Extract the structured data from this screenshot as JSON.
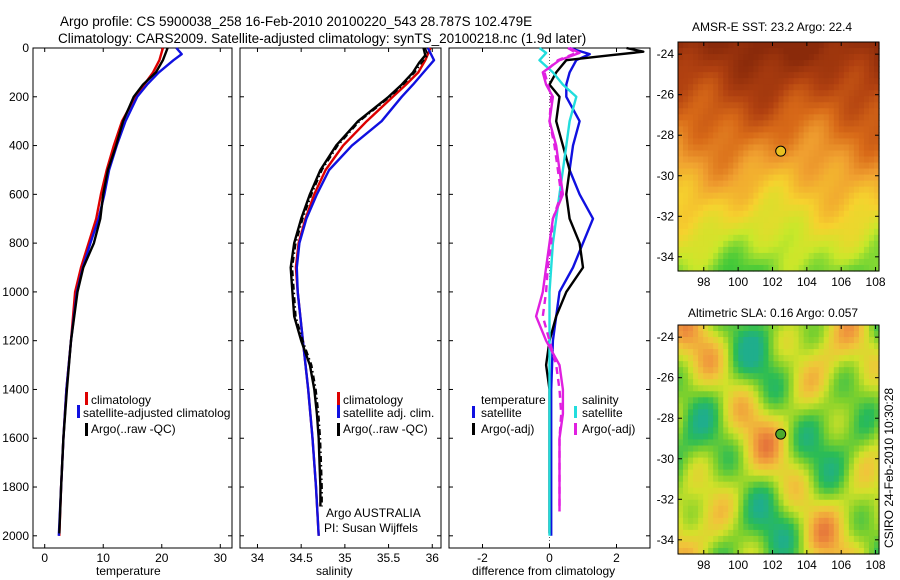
{
  "title": {
    "line1": "Argo profile: CS 5900038_258 16-Feb-2010 20100220_543 28.787S 102.479E",
    "line2": "Climatology: CARS2009. Satellite-adjusted climatology: synTS_20100218.nc (1.9d later)"
  },
  "footer": {
    "credit": "CSIRO 24-Feb-2010 10:30:28",
    "argo": "Argo AUSTRALIA",
    "pi": "PI: Susan Wijffels"
  },
  "colors": {
    "climatology": "#dd0000",
    "satellite": "#1010e0",
    "argo": "#000000",
    "satellite_salinity": "#22dddd",
    "argo_salinity": "#e020e0"
  },
  "chart_data": [
    {
      "type": "line",
      "panel": "temperature",
      "xlabel": "temperature",
      "ylabel": "",
      "xlim": [
        -2,
        32
      ],
      "ylim": [
        2050,
        0
      ],
      "x_ticks": [
        0,
        10,
        20,
        30
      ],
      "y_ticks": [
        0,
        200,
        400,
        600,
        800,
        1000,
        1200,
        1400,
        1600,
        1800,
        2000
      ],
      "legend_labels": [
        "climatology",
        "satellite-adjusted climatolog",
        "Argo(..raw -QC)"
      ],
      "series": [
        {
          "name": "climatology",
          "style": "solid",
          "depth": [
            0,
            50,
            100,
            150,
            200,
            300,
            400,
            500,
            600,
            700,
            800,
            900,
            1000,
            1200,
            1400,
            1600,
            1800,
            2000
          ],
          "values": [
            20.2,
            19.6,
            18.5,
            17.0,
            15.5,
            13.2,
            11.8,
            10.6,
            9.6,
            8.8,
            7.5,
            6.2,
            5.2,
            4.5,
            3.7,
            3.2,
            2.8,
            2.5
          ]
        },
        {
          "name": "satellite-adjusted climatolog",
          "style": "solid",
          "depth": [
            0,
            25,
            50,
            100,
            150,
            200,
            300,
            400,
            500,
            600,
            700,
            800,
            900,
            1000,
            1200,
            1400,
            1600,
            1800,
            2000
          ],
          "values": [
            22.5,
            23.4,
            22.0,
            19.5,
            17.5,
            15.8,
            13.8,
            12.3,
            11.0,
            10.2,
            9.2,
            7.8,
            6.5,
            5.5,
            4.5,
            3.7,
            3.2,
            2.8,
            2.4
          ]
        },
        {
          "name": "Argo(..raw -QC)",
          "style": "solid",
          "depth": [
            0,
            50,
            100,
            150,
            200,
            300,
            400,
            500,
            600,
            700,
            800,
            900,
            1000,
            1200,
            1400,
            1600,
            1800,
            1990
          ],
          "values": [
            21.0,
            20.2,
            19.0,
            16.8,
            15.2,
            13.4,
            12.2,
            10.8,
            10.0,
            9.5,
            8.4,
            6.6,
            5.6,
            4.5,
            3.8,
            3.2,
            2.8,
            2.5
          ]
        }
      ]
    },
    {
      "type": "line",
      "panel": "salinity",
      "xlabel": "salinity",
      "ylabel": "",
      "xlim": [
        33.8,
        36.1
      ],
      "ylim": [
        2050,
        0
      ],
      "x_ticks": [
        34,
        34.5,
        35,
        35.5,
        36
      ],
      "y_ticks": [
        0,
        200,
        400,
        600,
        800,
        1000,
        1200,
        1400,
        1600,
        1800,
        2000
      ],
      "legend_labels": [
        "climatology",
        "satellite adj. clim.",
        "Argo(..raw -QC)"
      ],
      "series": [
        {
          "name": "climatology",
          "style": "solid",
          "depth": [
            0,
            50,
            100,
            150,
            200,
            300,
            400,
            500,
            600,
            700,
            800,
            900,
            1000,
            1200,
            1400,
            1600,
            1800,
            2000
          ],
          "values": [
            35.98,
            35.92,
            35.84,
            35.7,
            35.55,
            35.25,
            34.98,
            34.78,
            34.65,
            34.55,
            34.47,
            34.44,
            34.46,
            34.52,
            34.58,
            34.63,
            34.67,
            34.7
          ]
        },
        {
          "name": "satellite adj. clim.",
          "style": "solid",
          "depth": [
            0,
            50,
            100,
            150,
            200,
            300,
            400,
            500,
            600,
            700,
            800,
            900,
            1000,
            1200,
            1400,
            1600,
            1800,
            2000
          ],
          "values": [
            35.95,
            36.02,
            35.9,
            35.78,
            35.65,
            35.42,
            35.08,
            34.82,
            34.68,
            34.56,
            34.48,
            34.45,
            34.46,
            34.52,
            34.58,
            34.63,
            34.67,
            34.7
          ]
        },
        {
          "name": "Argo(..raw -QC)",
          "style": "solid",
          "depth": [
            0,
            30,
            60,
            100,
            150,
            200,
            300,
            400,
            500,
            600,
            700,
            800,
            900,
            1000,
            1100,
            1200,
            1300,
            1400,
            1500,
            1600,
            1700,
            1800,
            1880
          ],
          "values": [
            35.9,
            35.92,
            35.85,
            35.78,
            35.65,
            35.5,
            35.15,
            34.9,
            34.72,
            34.6,
            34.5,
            34.42,
            34.38,
            34.4,
            34.42,
            34.5,
            34.6,
            34.65,
            34.68,
            34.7,
            34.71,
            34.72,
            34.72
          ]
        },
        {
          "name": "Argo(..raw -QC)",
          "style": "dashdot",
          "depth": [
            0,
            30,
            60,
            100,
            150,
            200,
            300,
            400,
            500,
            600,
            700,
            800,
            900,
            1000,
            1100,
            1200,
            1300,
            1400,
            1500,
            1600,
            1700,
            1800,
            1880
          ],
          "values": [
            35.92,
            35.95,
            35.88,
            35.8,
            35.67,
            35.52,
            35.17,
            34.92,
            34.74,
            34.62,
            34.52,
            34.44,
            34.4,
            34.42,
            34.44,
            34.52,
            34.62,
            34.67,
            34.7,
            34.72,
            34.73,
            34.74,
            34.74
          ]
        }
      ]
    },
    {
      "type": "line",
      "panel": "difference",
      "xlabel": "difference from climatology",
      "ylabel": "",
      "xlim": [
        -3,
        3
      ],
      "ylim": [
        2050,
        0
      ],
      "x_ticks": [
        -2,
        0,
        2
      ],
      "y_ticks": [
        0,
        200,
        400,
        600,
        800,
        1000,
        1200,
        1400,
        1600,
        1800,
        2000
      ],
      "legend_headers": [
        "temperature",
        "salinity"
      ],
      "legend_labels": [
        "satellite",
        "Argo(-adj)",
        "satellite",
        "Argo(-adj)"
      ],
      "series": [
        {
          "name": "satellite",
          "group": "temperature",
          "style": "solid",
          "depth": [
            0,
            25,
            50,
            100,
            150,
            200,
            300,
            400,
            500,
            600,
            700,
            800,
            900,
            1000,
            1200,
            1400,
            1600,
            1800,
            2000
          ],
          "values": [
            0.6,
            1.2,
            0.8,
            0.6,
            0.5,
            0.5,
            0.9,
            0.7,
            0.6,
            0.9,
            1.3,
            1.0,
            0.7,
            0.3,
            0.1,
            0.05,
            0.05,
            0.05,
            0.05
          ]
        },
        {
          "name": "Argo(-adj)",
          "group": "temperature",
          "style": "solid",
          "depth": [
            0,
            15,
            30,
            50,
            100,
            150,
            200,
            300,
            400,
            500,
            600,
            700,
            800,
            900,
            1000,
            1100,
            1200,
            1300,
            1400,
            1600,
            1800,
            1990
          ],
          "values": [
            2.3,
            2.8,
            1.8,
            0.5,
            0.2,
            0.0,
            0.3,
            0.2,
            0.4,
            0.6,
            0.5,
            0.6,
            0.9,
            1.0,
            0.5,
            0.2,
            0.0,
            -0.1,
            0.0,
            0.0,
            0.0,
            0.0
          ]
        },
        {
          "name": "satellite",
          "group": "salinity",
          "style": "solid",
          "depth": [
            0,
            20,
            50,
            100,
            150,
            200,
            300,
            400,
            500,
            600,
            700,
            800,
            900,
            1000,
            1200,
            1400,
            1600,
            1800,
            2000
          ],
          "values": [
            -0.3,
            -0.1,
            -0.3,
            0.1,
            0.4,
            0.8,
            0.6,
            0.5,
            0.4,
            0.3,
            0.2,
            0.1,
            0.05,
            0.0,
            0.0,
            0.0,
            0.0,
            0.0,
            0.0
          ]
        },
        {
          "name": "Argo(-adj)",
          "group": "salinity",
          "style": "solid",
          "depth": [
            0,
            20,
            50,
            100,
            150,
            200,
            300,
            400,
            500,
            600,
            700,
            800,
            900,
            1000,
            1100,
            1200,
            1300,
            1400,
            1500,
            1600,
            1800,
            1900
          ],
          "values": [
            0.6,
            0.9,
            0.3,
            -0.2,
            -0.1,
            0.1,
            0.0,
            0.2,
            0.3,
            0.4,
            0.1,
            0.0,
            -0.1,
            -0.2,
            -0.4,
            -0.1,
            0.3,
            0.4,
            0.4,
            0.3,
            0.3,
            0.3
          ]
        },
        {
          "name": "Argo(-adj)",
          "group": "salinity",
          "style": "dashed",
          "depth": [
            0,
            20,
            50,
            100,
            200,
            300,
            400,
            500,
            600,
            700,
            800,
            900,
            1000,
            1100,
            1200,
            1300,
            1400,
            1500,
            1600,
            1800,
            1900
          ],
          "values": [
            0.55,
            0.8,
            0.25,
            -0.15,
            0.05,
            0.0,
            0.15,
            0.25,
            0.35,
            0.1,
            0.05,
            -0.05,
            -0.1,
            -0.2,
            0.0,
            0.2,
            0.3,
            0.35,
            0.3,
            0.3,
            0.3
          ]
        }
      ]
    },
    {
      "type": "heatmap",
      "panel": "amsr-sst",
      "title": "AMSR-E SST: 23.2 Argo: 22.4",
      "xlim": [
        96.5,
        108.2
      ],
      "ylim": [
        -34.7,
        -23.4
      ],
      "x_ticks": [
        98,
        100,
        102,
        104,
        106,
        108
      ],
      "y_ticks": [
        -24,
        -26,
        -28,
        -30,
        -32,
        -34
      ],
      "marker": {
        "lon": 102.479,
        "lat": -28.787
      },
      "colormap": [
        "#8a2a0a",
        "#b04010",
        "#d86a18",
        "#f0a030",
        "#f6d22e",
        "#c8e82a",
        "#3fc83a"
      ]
    },
    {
      "type": "heatmap",
      "panel": "altimetric-sla",
      "title": "Altimetric SLA: 0.16 Argo: 0.057",
      "xlim": [
        96.5,
        108.2
      ],
      "ylim": [
        -34.7,
        -23.4
      ],
      "x_ticks": [
        98,
        100,
        102,
        104,
        106,
        108
      ],
      "y_ticks": [
        -24,
        -26,
        -28,
        -30,
        -32,
        -34
      ],
      "marker": {
        "lon": 102.479,
        "lat": -28.787
      },
      "colormap": [
        "#1fae8c",
        "#2bbc55",
        "#7fd12c",
        "#d2e12a",
        "#f0c63a",
        "#f09a3c",
        "#e26a3a"
      ]
    }
  ]
}
